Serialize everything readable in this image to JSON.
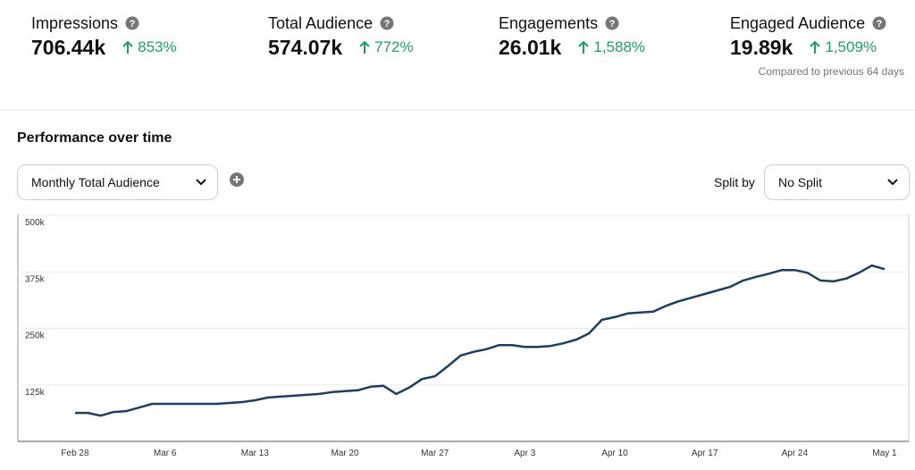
{
  "metrics": [
    {
      "label": "Impressions",
      "value": "706.44k",
      "change": "853%"
    },
    {
      "label": "Total Audience",
      "value": "574.07k",
      "change": "772%"
    },
    {
      "label": "Engagements",
      "value": "26.01k",
      "change": "1,588%"
    },
    {
      "label": "Engaged Audience",
      "value": "19.89k",
      "change": "1,509%"
    }
  ],
  "comparison_note": "Compared to previous 64 days",
  "section_title": "Performance over time",
  "metric_select": "Monthly Total Audience",
  "split_label": "Split by",
  "split_select": "No Split",
  "chart_data": {
    "type": "line",
    "categories": [
      "Feb 28",
      null,
      null,
      null,
      null,
      null,
      null,
      "Mar 6",
      null,
      null,
      null,
      null,
      null,
      null,
      "Mar 13",
      null,
      null,
      null,
      null,
      null,
      null,
      "Mar 20",
      null,
      null,
      null,
      null,
      null,
      null,
      "Mar 27",
      null,
      null,
      null,
      null,
      null,
      null,
      "Apr 3",
      null,
      null,
      null,
      null,
      null,
      null,
      "Apr 10",
      null,
      null,
      null,
      null,
      null,
      null,
      "Apr 17",
      null,
      null,
      null,
      null,
      null,
      null,
      "Apr 24",
      null,
      null,
      null,
      null,
      null,
      null,
      "May 1"
    ],
    "values": [
      63000,
      63000,
      57000,
      65000,
      67000,
      75000,
      83000,
      83000,
      83000,
      83000,
      83000,
      83000,
      85000,
      87000,
      91000,
      97000,
      99000,
      101000,
      103000,
      105000,
      109000,
      111000,
      113000,
      121000,
      123000,
      105000,
      119000,
      138000,
      144000,
      166000,
      190000,
      198000,
      204000,
      213000,
      213000,
      209000,
      209000,
      211000,
      217000,
      225000,
      239000,
      269000,
      275000,
      283000,
      285000,
      287000,
      300000,
      310000,
      318000,
      326000,
      334000,
      342000,
      356000,
      364000,
      371000,
      379000,
      379000,
      373000,
      356000,
      354000,
      360000,
      373000,
      389000,
      381000
    ],
    "color": "#1e3d5f",
    "ylim": [
      0,
      500000
    ],
    "yticks": [
      {
        "value": 125000,
        "label": "125k"
      },
      {
        "value": 250000,
        "label": "250k"
      },
      {
        "value": 375000,
        "label": "375k"
      },
      {
        "value": 500000,
        "label": "500k"
      }
    ],
    "grid": true
  }
}
